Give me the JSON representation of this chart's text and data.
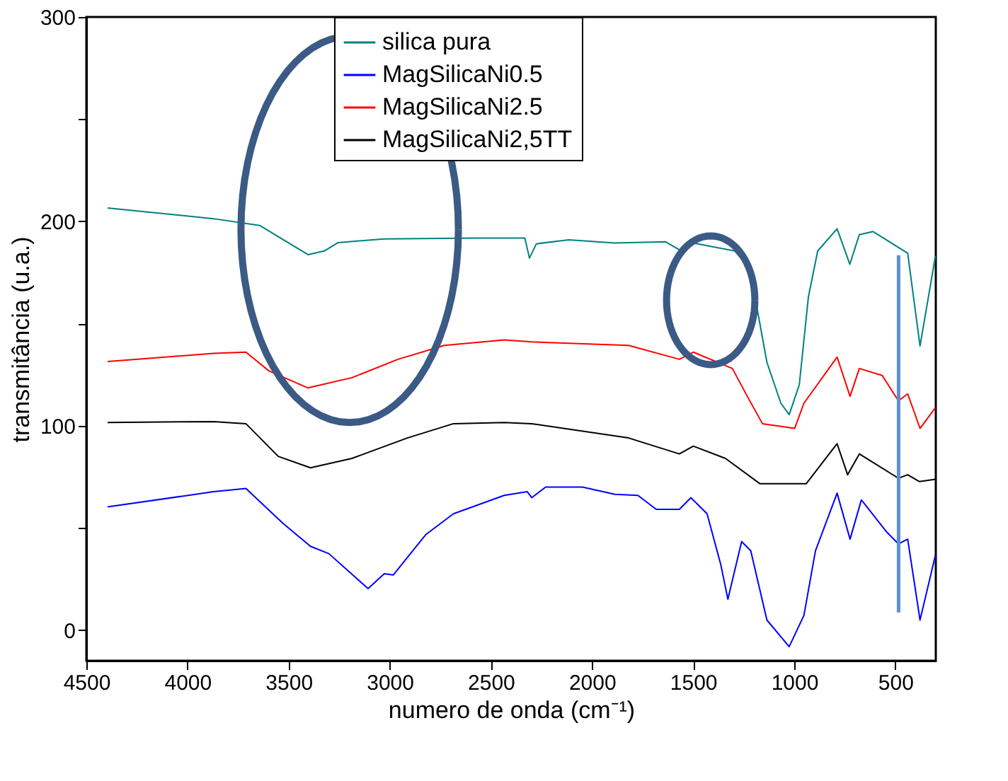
{
  "chart_data": {
    "type": "line",
    "xlabel": "numero de onda (cm⁻¹)",
    "ylabel": "transmitância (u.a.)",
    "xlim": [
      4500,
      300
    ],
    "ylim": [
      -15,
      300
    ],
    "xticks": [
      4500,
      4000,
      3500,
      3000,
      2500,
      2000,
      1500,
      1000,
      500
    ],
    "yticks": [
      0,
      {
        "value": 50,
        "label": null
      },
      100,
      {
        "value": 150,
        "label": null
      },
      200,
      {
        "value": 250,
        "label": null
      },
      300
    ],
    "ref_lines": [
      {
        "axis": "x",
        "value": 484,
        "color": "#5b8fd0"
      }
    ],
    "legend": "top",
    "grid": false,
    "line_style": "solid",
    "marker": "none",
    "series": [
      {
        "name": "silica pura",
        "color": "#008080",
        "x": [
          4395,
          3871,
          3643,
          3529,
          3404,
          3324,
          3255,
          3027,
          2571,
          2332,
          2309,
          2275,
          2115,
          1887,
          1636,
          1557,
          1499,
          1294,
          1226,
          1181,
          1135,
          1066,
          1025,
          975,
          930,
          884,
          788,
          725,
          678,
          610,
          439,
          378,
          302
        ],
        "values": [
          206.5,
          201.3,
          198,
          191.2,
          183.7,
          185.5,
          189.6,
          191.4,
          191.8,
          191.8,
          182,
          189,
          191,
          189.4,
          190,
          185.5,
          189.4,
          185.5,
          177.6,
          156,
          131,
          111,
          105.4,
          120,
          163,
          185.5,
          196.4,
          179,
          193.5,
          195,
          184.4,
          139,
          183
        ]
      },
      {
        "name": "MagSilicaNi0.5",
        "color": "#0000ff",
        "x": [
          4395,
          3871,
          3711,
          3529,
          3392,
          3301,
          3107,
          3027,
          2982,
          2822,
          2685,
          2434,
          2320,
          2298,
          2229,
          2047,
          1887,
          1773,
          1682,
          1568,
          1511,
          1431,
          1363,
          1328,
          1260,
          1215,
          1135,
          1025,
          952,
          895,
          788,
          724,
          668,
          542,
          485,
          439,
          378,
          302
        ],
        "values": [
          60.3,
          67.7,
          69.3,
          52.3,
          41,
          37.4,
          20.3,
          27.6,
          27,
          46.7,
          56.9,
          65.9,
          67.7,
          64.8,
          70,
          70,
          66.4,
          65.9,
          59.1,
          59.1,
          64.8,
          56.9,
          32,
          15.1,
          43.3,
          38.8,
          4.9,
          -8.1,
          7.2,
          38.8,
          67,
          44.5,
          63.7,
          47.9,
          42.2,
          44.5,
          4.9,
          36.6
        ]
      },
      {
        "name": "MagSilicaNi2.5",
        "color": "#ff0000",
        "x": [
          4395,
          3871,
          3711,
          3597,
          3404,
          3187,
          2959,
          2730,
          2434,
          2298,
          1819,
          1568,
          1499,
          1306,
          1226,
          1157,
          998,
          952,
          788,
          724,
          678,
          565,
          485,
          439,
          378,
          302
        ],
        "values": [
          131.4,
          135.4,
          136,
          126.8,
          118.5,
          123.5,
          132.5,
          139.3,
          142,
          141,
          139.3,
          132.5,
          136,
          128,
          113.3,
          101,
          98.7,
          111,
          133.6,
          114.4,
          128,
          124.6,
          112.2,
          115.6,
          98.7,
          108.8
        ]
      },
      {
        "name": "MagSilicaNi2,5TT",
        "color": "#000000",
        "x": [
          4395,
          3871,
          3711,
          3551,
          3392,
          3187,
          2913,
          2685,
          2434,
          2298,
          1819,
          1568,
          1499,
          1340,
          1169,
          941,
          788,
          736,
          678,
          485,
          439,
          382,
          302
        ],
        "values": [
          101.6,
          102,
          101,
          85,
          79.4,
          84,
          94,
          101,
          101.6,
          101,
          94,
          86.2,
          90,
          84,
          71.6,
          71.6,
          91.2,
          76,
          86.2,
          74.3,
          76,
          72.7,
          73.8
        ]
      }
    ]
  }
}
